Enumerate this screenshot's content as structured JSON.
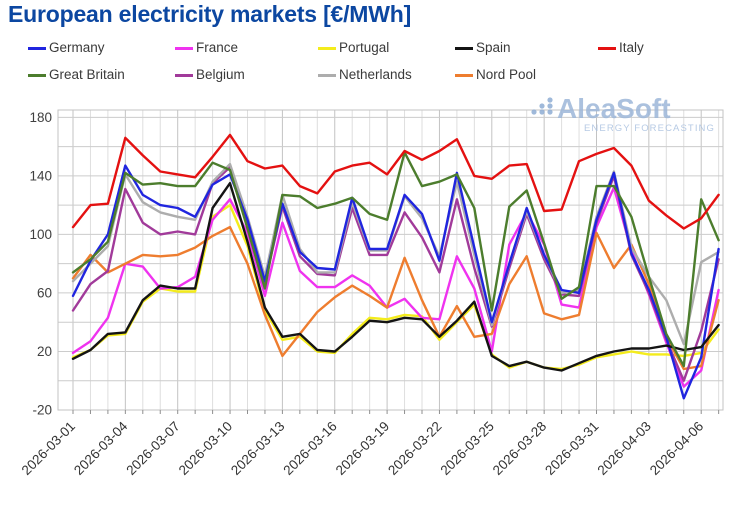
{
  "title": "European electricity markets [€/MWh]",
  "watermark": {
    "name": "AleaSoft",
    "subtitle": "ENERGY FORECASTING"
  },
  "legend_rows": [
    [
      "Germany",
      "France",
      "Portugal",
      "Spain",
      "Italy"
    ],
    [
      "Great Britain",
      "Belgium",
      "Netherlands",
      "Nord Pool"
    ]
  ],
  "chart_data": {
    "type": "line",
    "title": "European electricity markets [€/MWh]",
    "xlabel": "",
    "ylabel": "",
    "ylim": [
      -20,
      185
    ],
    "y_ticks": [
      -20,
      20,
      60,
      100,
      140,
      180
    ],
    "grid": true,
    "legend_position": "top",
    "x": [
      "2026-03-01",
      "2026-03-02",
      "2026-03-03",
      "2026-03-04",
      "2026-03-05",
      "2026-03-06",
      "2026-03-07",
      "2026-03-08",
      "2026-03-09",
      "2026-03-10",
      "2026-03-11",
      "2026-03-12",
      "2026-03-13",
      "2026-03-14",
      "2026-03-15",
      "2026-03-16",
      "2026-03-17",
      "2026-03-18",
      "2026-03-19",
      "2026-03-20",
      "2026-03-21",
      "2026-03-22",
      "2026-03-23",
      "2026-03-24",
      "2026-03-25",
      "2026-03-26",
      "2026-03-27",
      "2026-03-28",
      "2026-03-29",
      "2026-03-30",
      "2026-03-31",
      "2026-04-01",
      "2026-04-02",
      "2026-04-03",
      "2026-04-04",
      "2026-04-05",
      "2026-04-06",
      "2026-04-07"
    ],
    "x_tick_labels": [
      "2026-03-01",
      "2026-03-04",
      "2026-03-07",
      "2026-03-10",
      "2026-03-13",
      "2026-03-16",
      "2026-03-19",
      "2026-03-22",
      "2026-03-25",
      "2026-03-28",
      "2026-03-31",
      "2026-04-03",
      "2026-04-06"
    ],
    "series": [
      {
        "name": "Germany",
        "color": "#2025df",
        "values": [
          58,
          82,
          100,
          147,
          127,
          120,
          118,
          112,
          134,
          141,
          110,
          68,
          121,
          88,
          77,
          76,
          125,
          90,
          90,
          127,
          114,
          82,
          142,
          91,
          40,
          80,
          118,
          86,
          62,
          60,
          110,
          142,
          87,
          62,
          30,
          -12,
          16,
          90
        ]
      },
      {
        "name": "France",
        "color": "#ef33ef",
        "values": [
          19,
          27,
          43,
          80,
          78,
          63,
          64,
          71,
          110,
          124,
          101,
          58,
          108,
          75,
          64,
          64,
          72,
          65,
          50,
          56,
          43,
          42,
          85,
          63,
          20,
          93,
          115,
          93,
          52,
          50,
          105,
          132,
          89,
          59,
          26,
          -4,
          7,
          62
        ]
      },
      {
        "name": "Portugal",
        "color": "#f4ec1c",
        "values": [
          16,
          21,
          31,
          32,
          54,
          63,
          61,
          61,
          112,
          120,
          92,
          48,
          28,
          30,
          20,
          19,
          32,
          43,
          42,
          45,
          44,
          28,
          40,
          52,
          18,
          9,
          13,
          9,
          8,
          11,
          16,
          18,
          20,
          18,
          18,
          17,
          19,
          35
        ]
      },
      {
        "name": "Spain",
        "color": "#141414",
        "values": [
          15,
          21,
          32,
          33,
          55,
          65,
          63,
          63,
          118,
          135,
          95,
          50,
          30,
          32,
          21,
          20,
          30,
          41,
          40,
          43,
          42,
          30,
          41,
          54,
          17,
          10,
          13,
          9,
          7,
          12,
          17,
          20,
          22,
          22,
          24,
          21,
          23,
          38
        ]
      },
      {
        "name": "Italy",
        "color": "#e41111",
        "values": [
          105,
          120,
          121,
          166,
          154,
          143,
          141,
          139,
          153,
          168,
          150,
          145,
          147,
          133,
          128,
          143,
          147,
          149,
          141,
          157,
          151,
          157,
          165,
          140,
          138,
          147,
          148,
          116,
          117,
          150,
          155,
          159,
          147,
          123,
          113,
          104,
          111,
          127
        ]
      },
      {
        "name": "Great Britain",
        "color": "#4c7d2d",
        "values": [
          74,
          83,
          95,
          142,
          134,
          135,
          133,
          133,
          149,
          144,
          104,
          63,
          127,
          126,
          118,
          121,
          125,
          114,
          110,
          156,
          133,
          136,
          141,
          118,
          48,
          119,
          130,
          94,
          56,
          64,
          133,
          133,
          112,
          71,
          32,
          10,
          124,
          96
        ]
      },
      {
        "name": "Belgium",
        "color": "#a13a9a",
        "values": [
          48,
          66,
          75,
          131,
          108,
          100,
          102,
          100,
          135,
          146,
          109,
          67,
          119,
          85,
          73,
          72,
          118,
          86,
          86,
          115,
          98,
          74,
          124,
          77,
          37,
          77,
          114,
          83,
          59,
          58,
          108,
          140,
          86,
          60,
          28,
          0,
          34,
          83
        ]
      },
      {
        "name": "Netherlands",
        "color": "#adadad",
        "values": [
          68,
          80,
          92,
          141,
          122,
          115,
          112,
          110,
          136,
          148,
          112,
          71,
          127,
          90,
          74,
          74,
          122,
          89,
          89,
          126,
          111,
          85,
          136,
          86,
          38,
          80,
          116,
          86,
          60,
          62,
          112,
          143,
          91,
          71,
          55,
          25,
          81,
          88
        ]
      },
      {
        "name": "Nord Pool",
        "color": "#ee7d2f",
        "values": [
          70,
          86,
          74,
          80,
          86,
          85,
          86,
          91,
          99,
          105,
          80,
          45,
          17,
          32,
          47,
          57,
          65,
          58,
          50,
          84,
          55,
          30,
          51,
          30,
          32,
          66,
          85,
          46,
          42,
          45,
          101,
          77,
          93,
          66,
          30,
          8,
          10,
          55
        ]
      }
    ]
  }
}
